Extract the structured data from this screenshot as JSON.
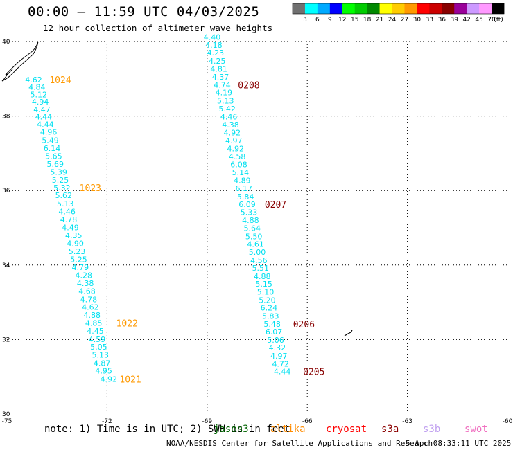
{
  "header": {
    "title": "00:00 – 11:59 UTC 04/03/2025",
    "subtitle": "12 hour collection of altimeter wave heights"
  },
  "footer": {
    "note_prefix": "note:  1) Time is in UTC; 2) SWH is in feet",
    "credit": "NOAA/NESDIS Center for Satellite Applications and Research",
    "timestamp": "5 Apr 08:33:11 UTC 2025"
  },
  "satellites": [
    {
      "name": "jason3",
      "color": "#006400"
    },
    {
      "name": "altika",
      "color": "#ff8c00"
    },
    {
      "name": "cryosat",
      "color": "#ff0000"
    },
    {
      "name": "s3a",
      "color": "#8b0000"
    },
    {
      "name": "s3b",
      "color": "#c0a0f0"
    },
    {
      "name": "swot",
      "color": "#f070c0"
    }
  ],
  "colorbar": {
    "labels": [
      "3",
      "6",
      "9",
      "12",
      "15",
      "18",
      "21",
      "24",
      "27",
      "30",
      "33",
      "36",
      "39",
      "42",
      "45",
      "70"
    ],
    "unit": "(ft)",
    "colors": [
      "#707070",
      "#00ffff",
      "#00aaff",
      "#0000ff",
      "#00ff00",
      "#00cc00",
      "#008800",
      "#ffff00",
      "#ffcc00",
      "#ff9900",
      "#ff0000",
      "#cc0000",
      "#880000",
      "#990099",
      "#cc99ff",
      "#ff99ff",
      "#000000"
    ]
  },
  "chart_data": {
    "type": "scatter",
    "xlim": [
      -75,
      -60
    ],
    "ylim": [
      30,
      40
    ],
    "xticks": [
      "-75",
      "-72",
      "-69",
      "-66",
      "-63",
      "-60"
    ],
    "yticks": [
      "30",
      "32",
      "34",
      "36",
      "38",
      "40"
    ],
    "grid": true,
    "tracks": [
      {
        "satellite": "altika",
        "color": "#00e0f0",
        "points": [
          {
            "lon": -74.2,
            "lat": 38.98,
            "v": "4.62"
          },
          {
            "lon": -74.1,
            "lat": 38.78,
            "v": "4.84"
          },
          {
            "lon": -74.05,
            "lat": 38.58,
            "v": "5.12"
          },
          {
            "lon": -74.0,
            "lat": 38.38,
            "v": "4.94"
          },
          {
            "lon": -73.95,
            "lat": 38.18,
            "v": "4.47"
          },
          {
            "lon": -73.9,
            "lat": 37.98,
            "v": "4.44"
          },
          {
            "lon": -73.85,
            "lat": 37.78,
            "v": "4.44"
          },
          {
            "lon": -73.75,
            "lat": 37.57,
            "v": "4.96"
          },
          {
            "lon": -73.7,
            "lat": 37.35,
            "v": "5.49"
          },
          {
            "lon": -73.65,
            "lat": 37.14,
            "v": "6.14"
          },
          {
            "lon": -73.6,
            "lat": 36.92,
            "v": "5.65"
          },
          {
            "lon": -73.55,
            "lat": 36.71,
            "v": "5.69"
          },
          {
            "lon": -73.45,
            "lat": 36.5,
            "v": "5.39"
          },
          {
            "lon": -73.4,
            "lat": 36.28,
            "v": "5.25"
          },
          {
            "lon": -73.35,
            "lat": 36.08,
            "v": "5.32"
          },
          {
            "lon": -73.3,
            "lat": 35.87,
            "v": "5.62"
          },
          {
            "lon": -73.25,
            "lat": 35.65,
            "v": "5.13"
          },
          {
            "lon": -73.2,
            "lat": 35.44,
            "v": "4.46"
          },
          {
            "lon": -73.15,
            "lat": 35.22,
            "v": "4.78"
          },
          {
            "lon": -73.1,
            "lat": 35.01,
            "v": "4.49"
          },
          {
            "lon": -73.0,
            "lat": 34.8,
            "v": "4.35"
          },
          {
            "lon": -72.95,
            "lat": 34.58,
            "v": "4.90"
          },
          {
            "lon": -72.9,
            "lat": 34.37,
            "v": "5.23"
          },
          {
            "lon": -72.85,
            "lat": 34.15,
            "v": "5.25"
          },
          {
            "lon": -72.8,
            "lat": 33.94,
            "v": "4.79"
          },
          {
            "lon": -72.7,
            "lat": 33.73,
            "v": "4.28"
          },
          {
            "lon": -72.65,
            "lat": 33.51,
            "v": "4.38"
          },
          {
            "lon": -72.6,
            "lat": 33.3,
            "v": "4.68"
          },
          {
            "lon": -72.55,
            "lat": 33.08,
            "v": "4.78"
          },
          {
            "lon": -72.5,
            "lat": 32.87,
            "v": "4.62"
          },
          {
            "lon": -72.45,
            "lat": 32.66,
            "v": "4.88"
          },
          {
            "lon": -72.4,
            "lat": 32.44,
            "v": "4.85"
          },
          {
            "lon": -72.35,
            "lat": 32.23,
            "v": "4.45"
          },
          {
            "lon": -72.3,
            "lat": 32.01,
            "v": "4.59"
          },
          {
            "lon": -72.25,
            "lat": 31.8,
            "v": "5.05"
          },
          {
            "lon": -72.2,
            "lat": 31.59,
            "v": "5.13"
          },
          {
            "lon": -72.15,
            "lat": 31.37,
            "v": "4.87"
          },
          {
            "lon": -72.1,
            "lat": 31.16,
            "v": "4.95"
          },
          {
            "lon": -71.95,
            "lat": 30.94,
            "v": "4.92"
          }
        ],
        "labels": [
          {
            "lon": -73.4,
            "lat": 38.98,
            "text": "1024",
            "color": "#ff9900"
          },
          {
            "lon": -72.5,
            "lat": 36.08,
            "text": "1023",
            "color": "#ff9900"
          },
          {
            "lon": -71.4,
            "lat": 32.44,
            "text": "1022",
            "color": "#ff9900"
          },
          {
            "lon": -71.3,
            "lat": 30.94,
            "text": "1021",
            "color": "#ff9900"
          }
        ]
      },
      {
        "satellite": "s3a",
        "color": "#00e0f0",
        "points": [
          {
            "lon": -68.85,
            "lat": 40.12,
            "v": "4.40"
          },
          {
            "lon": -68.8,
            "lat": 39.91,
            "v": "4.18"
          },
          {
            "lon": -68.75,
            "lat": 39.7,
            "v": "4.23"
          },
          {
            "lon": -68.7,
            "lat": 39.48,
            "v": "4.25"
          },
          {
            "lon": -68.65,
            "lat": 39.27,
            "v": "4.81"
          },
          {
            "lon": -68.6,
            "lat": 39.05,
            "v": "4.37"
          },
          {
            "lon": -68.55,
            "lat": 38.84,
            "v": "4.74"
          },
          {
            "lon": -68.5,
            "lat": 38.63,
            "v": "4.19"
          },
          {
            "lon": -68.45,
            "lat": 38.41,
            "v": "5.13"
          },
          {
            "lon": -68.4,
            "lat": 38.2,
            "v": "5.42"
          },
          {
            "lon": -68.35,
            "lat": 37.98,
            "v": "4.46"
          },
          {
            "lon": -68.3,
            "lat": 37.77,
            "v": "4.38"
          },
          {
            "lon": -68.25,
            "lat": 37.56,
            "v": "4.92"
          },
          {
            "lon": -68.2,
            "lat": 37.34,
            "v": "4.97"
          },
          {
            "lon": -68.15,
            "lat": 37.13,
            "v": "4.92"
          },
          {
            "lon": -68.1,
            "lat": 36.91,
            "v": "4.58"
          },
          {
            "lon": -68.05,
            "lat": 36.7,
            "v": "6.08"
          },
          {
            "lon": -68.0,
            "lat": 36.49,
            "v": "5.14"
          },
          {
            "lon": -67.95,
            "lat": 36.27,
            "v": "4.89"
          },
          {
            "lon": -67.9,
            "lat": 36.06,
            "v": "6.17"
          },
          {
            "lon": -67.85,
            "lat": 35.84,
            "v": "5.84"
          },
          {
            "lon": -67.8,
            "lat": 35.63,
            "v": "6.09"
          },
          {
            "lon": -67.75,
            "lat": 35.42,
            "v": "5.33"
          },
          {
            "lon": -67.7,
            "lat": 35.2,
            "v": "4.88"
          },
          {
            "lon": -67.65,
            "lat": 34.99,
            "v": "5.64"
          },
          {
            "lon": -67.6,
            "lat": 34.77,
            "v": "5.50"
          },
          {
            "lon": -67.55,
            "lat": 34.56,
            "v": "4.61"
          },
          {
            "lon": -67.5,
            "lat": 34.35,
            "v": "5.00"
          },
          {
            "lon": -67.45,
            "lat": 34.13,
            "v": "4.56"
          },
          {
            "lon": -67.4,
            "lat": 33.92,
            "v": "5.51"
          },
          {
            "lon": -67.35,
            "lat": 33.7,
            "v": "4.88"
          },
          {
            "lon": -67.3,
            "lat": 33.49,
            "v": "5.15"
          },
          {
            "lon": -67.25,
            "lat": 33.28,
            "v": "5.10"
          },
          {
            "lon": -67.2,
            "lat": 33.06,
            "v": "5.20"
          },
          {
            "lon": -67.15,
            "lat": 32.85,
            "v": "6.24"
          },
          {
            "lon": -67.1,
            "lat": 32.63,
            "v": "5.83"
          },
          {
            "lon": -67.05,
            "lat": 32.42,
            "v": "5.48"
          },
          {
            "lon": -67.0,
            "lat": 32.21,
            "v": "6.07"
          },
          {
            "lon": -66.95,
            "lat": 31.99,
            "v": "5.06"
          },
          {
            "lon": -66.9,
            "lat": 31.78,
            "v": "4.32"
          },
          {
            "lon": -66.85,
            "lat": 31.56,
            "v": "4.97"
          },
          {
            "lon": -66.8,
            "lat": 31.35,
            "v": "4.72"
          },
          {
            "lon": -66.75,
            "lat": 31.14,
            "v": "4.44"
          }
        ],
        "labels": [
          {
            "lon": -67.75,
            "lat": 38.84,
            "text": "0208",
            "color": "#880000"
          },
          {
            "lon": -66.95,
            "lat": 35.63,
            "text": "0207",
            "color": "#880000"
          },
          {
            "lon": -66.1,
            "lat": 32.42,
            "text": "0206",
            "color": "#880000"
          },
          {
            "lon": -65.8,
            "lat": 31.14,
            "text": "0205",
            "color": "#880000"
          }
        ]
      }
    ]
  }
}
